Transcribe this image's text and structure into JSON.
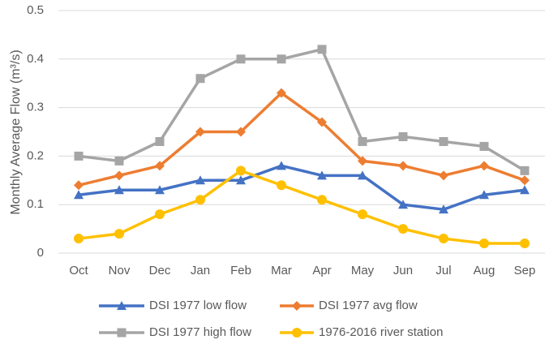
{
  "chart_data": {
    "type": "line",
    "y_label": "Monthly Average Flow (m³/s)",
    "categories": [
      "Oct",
      "Nov",
      "Dec",
      "Jan",
      "Feb",
      "Mar",
      "Apr",
      "May",
      "Jun",
      "Jul",
      "Aug",
      "Sep"
    ],
    "ylim": [
      0,
      0.5
    ],
    "yticks": [
      0,
      0.1,
      0.2,
      0.3,
      0.4,
      0.5
    ],
    "grid": true,
    "legend": "bottom",
    "series": [
      {
        "name": "DSI 1977 low flow",
        "color": "#4472c4",
        "marker": "triangle",
        "values": [
          0.12,
          0.13,
          0.13,
          0.15,
          0.15,
          0.18,
          0.16,
          0.16,
          0.1,
          0.09,
          0.12,
          0.13
        ]
      },
      {
        "name": "DSI 1977 avg flow",
        "color": "#ed7d31",
        "marker": "diamond",
        "values": [
          0.14,
          0.16,
          0.18,
          0.25,
          0.25,
          0.33,
          0.27,
          0.19,
          0.18,
          0.16,
          0.18,
          0.15
        ]
      },
      {
        "name": "DSI 1977 high flow",
        "color": "#a5a5a5",
        "marker": "square",
        "values": [
          0.2,
          0.19,
          0.23,
          0.36,
          0.4,
          0.4,
          0.42,
          0.23,
          0.24,
          0.23,
          0.22,
          0.17
        ]
      },
      {
        "name": "1976-2016 river station",
        "color": "#ffc000",
        "marker": "circle",
        "values": [
          0.03,
          0.04,
          0.08,
          0.11,
          0.17,
          0.14,
          0.11,
          0.08,
          0.05,
          0.03,
          0.02,
          0.02
        ]
      }
    ]
  }
}
